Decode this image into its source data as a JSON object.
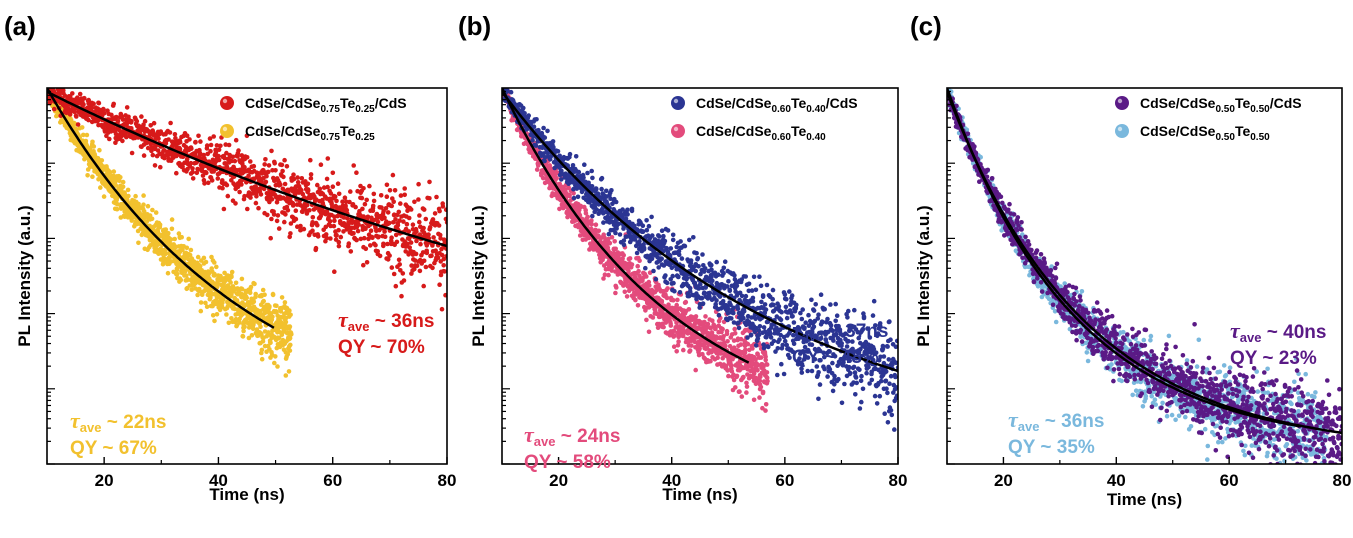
{
  "figure": {
    "panel_labels": [
      "(a)",
      "(b)",
      "(c)"
    ]
  },
  "chart_data": [
    {
      "type": "scatter",
      "panel": "(a)",
      "xlabel": "Time (ns)",
      "ylabel": "PL Intensity (a.u.)",
      "xlim": [
        10,
        80
      ],
      "y_scale": "log",
      "x_ticks": [
        20,
        40,
        60,
        80
      ],
      "legend_position": "top-right",
      "series": [
        {
          "name": "CdSe/CdSe0.75Te0.25/CdS",
          "name_parts": [
            "CdSe/CdSe",
            "0.75",
            "Te",
            "0.25",
            "/CdS"
          ],
          "color": "#d71a1a",
          "x_end": 80,
          "y_end": 0.072,
          "annotation": {
            "tau_value": "~ 36ns",
            "qy": "QY  ~ 70%"
          }
        },
        {
          "name": "CdSe/CdSe0.75Te0.25",
          "name_parts": [
            "CdSe/CdSe",
            "0.75",
            "Te",
            "0.25",
            ""
          ],
          "color": "#f2c12e",
          "x_end": 60,
          "y_end": 0.0,
          "annotation": {
            "tau_value": "~ 22ns",
            "qy": "QY  ~ 67%"
          }
        }
      ],
      "fit_color": "#000000"
    },
    {
      "type": "scatter",
      "panel": "(b)",
      "xlabel": "Time (ns)",
      "ylabel": "PL Intensity (a.u.)",
      "xlim": [
        10,
        80
      ],
      "y_scale": "log",
      "x_ticks": [
        20,
        40,
        60,
        80
      ],
      "legend_position": "top-right",
      "series": [
        {
          "name": "CdSe/CdSe0.60Te0.40/CdS",
          "name_parts": [
            "CdSe/CdSe",
            "0.60",
            "Te",
            "0.40",
            "/CdS"
          ],
          "color": "#2b3593",
          "x_end": 80,
          "y_end": 0.08,
          "annotation": {
            "tau_value": "~ 37ns",
            "qy": "QY  ~ 48%"
          }
        },
        {
          "name": "CdSe/CdSe0.60Te0.40",
          "name_parts": [
            "CdSe/CdSe",
            "0.60",
            "Te",
            "0.40",
            ""
          ],
          "color": "#e34b7c",
          "x_end": 65,
          "y_end": 0.0,
          "annotation": {
            "tau_value": "~ 24ns",
            "qy": "QY  ~ 58%"
          }
        }
      ],
      "fit_color": "#000000"
    },
    {
      "type": "scatter",
      "panel": "(c)",
      "xlabel": "Time (ns)",
      "ylabel": "PL Intensity (a.u.)",
      "xlim": [
        10,
        80
      ],
      "y_scale": "log",
      "x_ticks": [
        20,
        40,
        60,
        80
      ],
      "legend_position": "top-right",
      "series": [
        {
          "name": "CdSe/CdSe0.50Te0.50/CdS",
          "name_parts": [
            "CdSe/CdSe",
            "0.50",
            "Te",
            "0.50",
            "/CdS"
          ],
          "color": "#5a1a86",
          "x_end": 80,
          "y_end": 0.1,
          "annotation": {
            "tau_value": "~ 40ns",
            "qy": "QY  ~ 23%"
          }
        },
        {
          "name": "CdSe/CdSe0.50Te0.50",
          "name_parts": [
            "CdSe/CdSe",
            "0.50",
            "Te",
            "0.50",
            ""
          ],
          "color": "#7ab8dd",
          "x_end": 78,
          "y_end": 0.0,
          "annotation": {
            "tau_value": "~ 36ns",
            "qy": "QY  ~ 35%"
          }
        }
      ],
      "fit_color": "#000000"
    }
  ]
}
